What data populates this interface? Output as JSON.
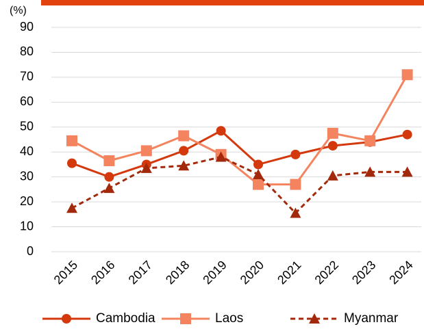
{
  "chart_data": {
    "type": "line",
    "y_label": "(%)",
    "categories": [
      "2015",
      "2016",
      "2017",
      "2018",
      "2019",
      "2020",
      "2021",
      "2022",
      "2023",
      "2024"
    ],
    "series": [
      {
        "name": "Cambodia",
        "color": "#d4380d",
        "marker": "circle",
        "dash": false,
        "values": [
          35.5,
          30,
          35,
          40.5,
          48.5,
          35,
          39,
          42.5,
          44,
          47
        ]
      },
      {
        "name": "Laos",
        "color": "#f4845f",
        "marker": "square",
        "dash": false,
        "values": [
          44.5,
          36.5,
          40.5,
          46.5,
          39,
          27,
          27,
          47.5,
          44.5,
          71
        ]
      },
      {
        "name": "Myanmar",
        "color": "#a3290c",
        "marker": "triangle",
        "dash": true,
        "values": [
          17.5,
          25.5,
          33.5,
          34.5,
          38,
          31,
          15.5,
          30.5,
          32,
          32
        ]
      }
    ],
    "ylim": [
      0,
      90
    ],
    "yticks": [
      0,
      10,
      20,
      30,
      40,
      50,
      60,
      70,
      80,
      90
    ],
    "grid": true,
    "legend": "bottom"
  }
}
